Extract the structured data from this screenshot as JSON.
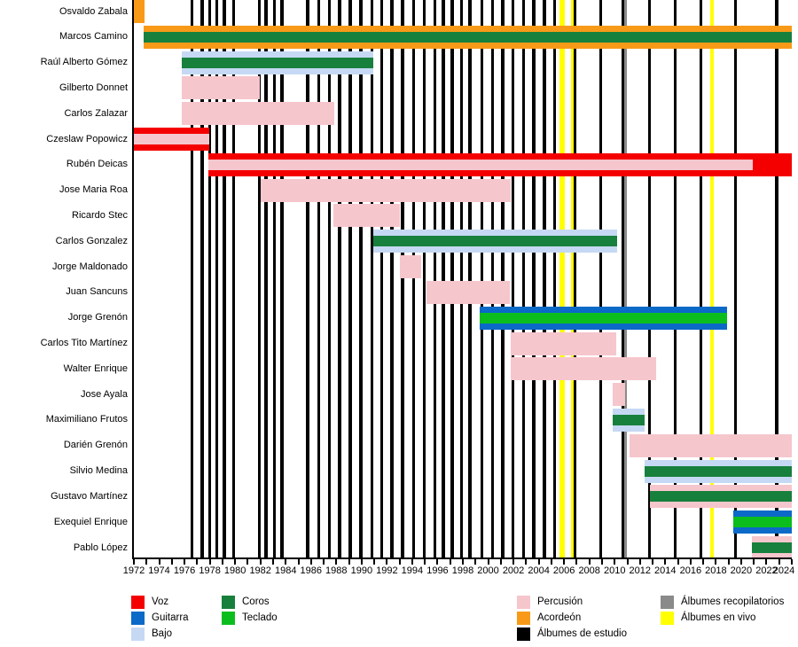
{
  "chart_data": {
    "type": "timeline",
    "description": "Band membership timeline with album release markers",
    "x_axis": {
      "start": 1972,
      "end": 2024,
      "tick_interval": 1,
      "label_interval": 2,
      "tick_labels": [
        "1972",
        "1974",
        "1976",
        "1978",
        "1980",
        "1982",
        "1984",
        "1986",
        "1988",
        "1990",
        "1992",
        "1994",
        "1996",
        "1998",
        "2000",
        "2002",
        "2004",
        "2006",
        "2008",
        "2010",
        "2012",
        "2014",
        "2016",
        "2018",
        "2020",
        "2022",
        "2024"
      ]
    },
    "members": [
      {
        "name": "Osvaldo Zabala",
        "layers": [
          {
            "role": "acordeon",
            "band": "full",
            "start": 1972.0,
            "end": 1972.85
          }
        ]
      },
      {
        "name": "Marcos Camino",
        "layers": [
          {
            "role": "acordeon",
            "band": "full",
            "start": 1972.8,
            "end": 2024
          },
          {
            "role": "coros",
            "band": "center",
            "start": 1972.8,
            "end": 2024
          }
        ]
      },
      {
        "name": "Raúl Alberto Gómez",
        "layers": [
          {
            "role": "bajo",
            "band": "full",
            "start": 1975.8,
            "end": 1990.95
          },
          {
            "role": "coros",
            "band": "center",
            "start": 1975.8,
            "end": 1990.95
          }
        ]
      },
      {
        "name": "Gilberto Donnet",
        "layers": [
          {
            "role": "percusion",
            "band": "full",
            "start": 1975.8,
            "end": 1981.95
          }
        ]
      },
      {
        "name": "Carlos Zalazar",
        "layers": [
          {
            "role": "percusion",
            "band": "full",
            "start": 1975.8,
            "end": 1987.85
          }
        ]
      },
      {
        "name": "Czeslaw Popowicz",
        "layers": [
          {
            "role": "voz",
            "band": "full",
            "start": 1972.0,
            "end": 1977.95
          },
          {
            "role": "percusion",
            "band": "center",
            "start": 1972.0,
            "end": 1977.95
          }
        ]
      },
      {
        "name": "Rubén Deicas",
        "layers": [
          {
            "role": "voz",
            "band": "full",
            "start": 1977.9,
            "end": 2024
          },
          {
            "role": "percusion",
            "band": "center",
            "start": 1977.9,
            "end": 2020.9
          }
        ]
      },
      {
        "name": "Jose Maria Roa",
        "layers": [
          {
            "role": "percusion",
            "band": "full",
            "start": 1982.0,
            "end": 2001.75
          }
        ]
      },
      {
        "name": "Ricardo Stec",
        "layers": [
          {
            "role": "percusion",
            "band": "full",
            "start": 1987.8,
            "end": 1993.0
          }
        ]
      },
      {
        "name": "Carlos Gonzalez",
        "layers": [
          {
            "role": "bajo",
            "band": "full",
            "start": 1990.9,
            "end": 2010.2
          },
          {
            "role": "coros",
            "band": "center",
            "start": 1990.9,
            "end": 2010.2
          }
        ]
      },
      {
        "name": "Jorge Maldonado",
        "layers": [
          {
            "role": "percusion",
            "band": "full",
            "start": 1993.0,
            "end": 1994.7
          }
        ]
      },
      {
        "name": "Juan Sancuns",
        "layers": [
          {
            "role": "percusion",
            "band": "full",
            "start": 1995.1,
            "end": 2001.75
          }
        ]
      },
      {
        "name": "Jorge Grenón",
        "layers": [
          {
            "role": "guitarra",
            "band": "full",
            "start": 1999.3,
            "end": 2018.9
          },
          {
            "role": "teclado",
            "band": "center",
            "start": 1999.3,
            "end": 2018.9
          }
        ]
      },
      {
        "name": "Carlos Tito Martínez",
        "layers": [
          {
            "role": "percusion",
            "band": "full",
            "start": 2001.75,
            "end": 2010.15
          }
        ]
      },
      {
        "name": "Walter Enrique",
        "layers": [
          {
            "role": "percusion",
            "band": "full",
            "start": 2001.75,
            "end": 2013.3
          }
        ]
      },
      {
        "name": "Jose Ayala",
        "layers": [
          {
            "role": "percusion",
            "band": "full",
            "start": 2009.85,
            "end": 2010.85
          }
        ]
      },
      {
        "name": "Maximiliano Frutos",
        "layers": [
          {
            "role": "bajo",
            "band": "full",
            "start": 2009.85,
            "end": 2012.4
          },
          {
            "role": "coros",
            "band": "center",
            "start": 2009.85,
            "end": 2012.4
          }
        ]
      },
      {
        "name": "Darién Grenón",
        "layers": [
          {
            "role": "percusion",
            "band": "full",
            "start": 2011.15,
            "end": 2024
          }
        ]
      },
      {
        "name": "Silvio Medina",
        "layers": [
          {
            "role": "bajo",
            "band": "full",
            "start": 2012.35,
            "end": 2024
          },
          {
            "role": "coros",
            "band": "center",
            "start": 2012.35,
            "end": 2024
          }
        ]
      },
      {
        "name": "Gustavo Martínez",
        "layers": [
          {
            "role": "percusion",
            "band": "full",
            "start": 2012.8,
            "end": 2024
          },
          {
            "role": "coros",
            "band": "center",
            "start": 2012.8,
            "end": 2024
          }
        ]
      },
      {
        "name": "Exequiel Enrique",
        "layers": [
          {
            "role": "guitarra",
            "band": "full",
            "start": 2019.4,
            "end": 2024
          },
          {
            "role": "teclado",
            "band": "center",
            "start": 2019.4,
            "end": 2024
          }
        ]
      },
      {
        "name": "Pablo López",
        "layers": [
          {
            "role": "percusion",
            "band": "full",
            "start": 2020.85,
            "end": 2024
          },
          {
            "role": "coros",
            "band": "center",
            "start": 2020.85,
            "end": 2024
          }
        ]
      }
    ],
    "albums": {
      "studio": [
        1976.6,
        1977.4,
        1978.0,
        1978.55,
        1979.15,
        1979.9,
        1981.9,
        1982.45,
        1983.1,
        1983.7,
        1985.75,
        1986.6,
        1987.45,
        1988.25,
        1989.1,
        1989.95,
        1990.8,
        1991.6,
        1992.4,
        1993.25,
        1994.1,
        1994.95,
        1995.8,
        1996.45,
        1997.15,
        1997.9,
        1998.55,
        1999.5,
        2000.35,
        2001.15,
        2001.95,
        2002.8,
        2003.6,
        2004.45,
        2005.25,
        2006.85,
        2008.9,
        2010.65,
        2012.75,
        2014.8,
        2016.8,
        2019.55,
        2022.8
      ],
      "live": [
        {
          "year": 2005.85,
          "wide": true
        },
        {
          "year": 2006.65,
          "wide": false
        },
        {
          "year": 2017.7,
          "wide": false
        }
      ],
      "compilation": [
        {
          "year": 2010.85,
          "wide": false
        }
      ]
    },
    "legend": {
      "columns": [
        {
          "items": [
            {
              "label": "Voz",
              "color": "voz"
            },
            {
              "label": "Guitarra",
              "color": "guitarra"
            },
            {
              "label": "Bajo",
              "color": "bajo"
            }
          ]
        },
        {
          "items": [
            {
              "label": "Coros",
              "color": "coros"
            },
            {
              "label": "Teclado",
              "color": "teclado"
            }
          ]
        },
        {
          "items": [
            {
              "label": "Percusión",
              "color": "percusion"
            },
            {
              "label": "Acordeón",
              "color": "acordeon"
            },
            {
              "label": "Álbumes de estudio",
              "color": "estudio"
            }
          ]
        },
        {
          "items": [
            {
              "label": "Álbumes recopilatorios",
              "color": "recopilatorios"
            },
            {
              "label": "Álbumes en vivo",
              "color": "vivo"
            }
          ]
        }
      ]
    }
  },
  "colors": {
    "voz": "#f50000",
    "guitarra": "#0b69c8",
    "bajo": "#c6d9f4",
    "coros": "#17803c",
    "teclado": "#0cbe1d",
    "percusion": "#f6c6cd",
    "acordeon": "#f89a18",
    "estudio": "#000000",
    "recopilatorios": "#8a8a8a",
    "vivo": "#ffff00"
  }
}
